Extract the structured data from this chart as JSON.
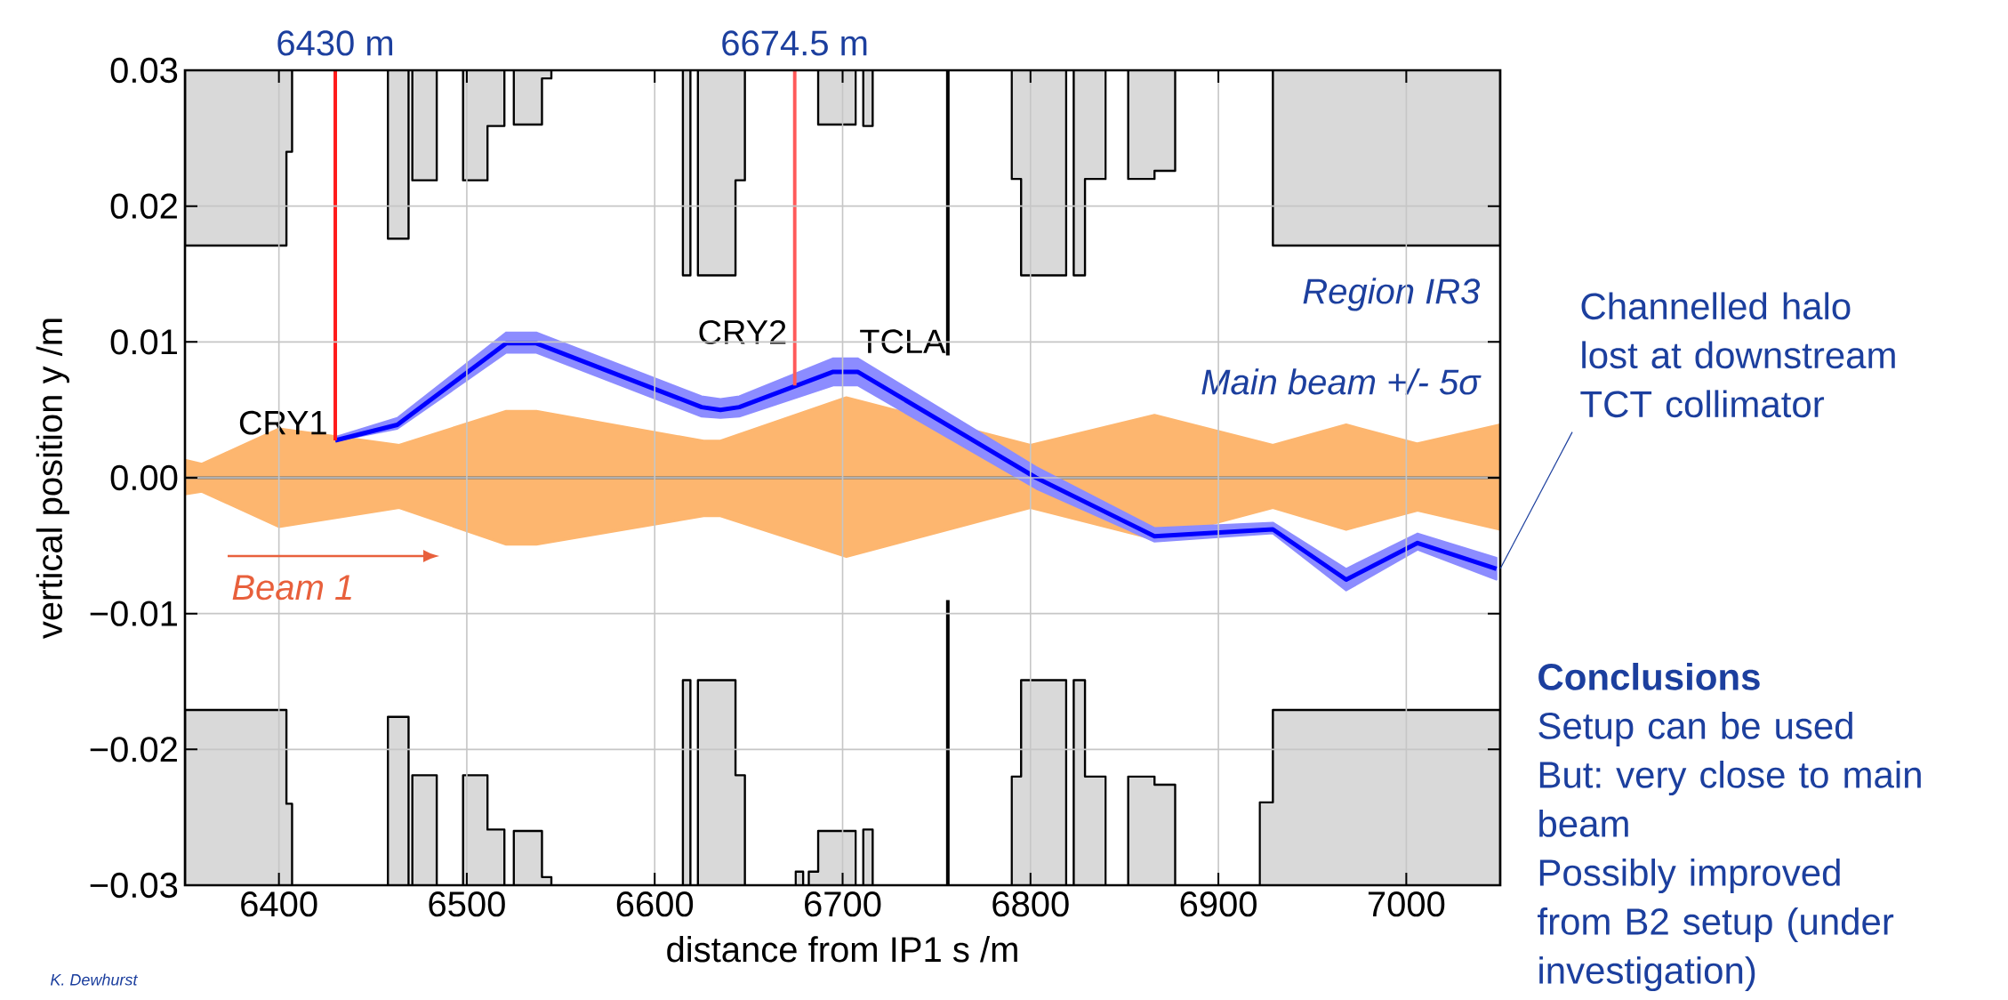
{
  "chart_data": {
    "type": "line",
    "xlabel": "distance from IP1 s /m",
    "ylabel": "vertical position y /m",
    "xlim": [
      6350,
      7050
    ],
    "ylim": [
      -0.03,
      0.03
    ],
    "xticks": [
      6400,
      6500,
      6600,
      6700,
      6800,
      6900,
      7000
    ],
    "yticks": [
      {
        "value": -0.03,
        "label": "−0.03"
      },
      {
        "value": -0.02,
        "label": "−0.02"
      },
      {
        "value": -0.01,
        "label": "−0.01"
      },
      {
        "value": 0,
        "label": "0.00"
      },
      {
        "value": 0.01,
        "label": "0.01"
      },
      {
        "value": 0.02,
        "label": "0.02"
      },
      {
        "value": 0.03,
        "label": "0.03"
      }
    ],
    "grid": true,
    "ref_lines": [
      {
        "axis": "y",
        "value": 0,
        "color": "#6e6e6e"
      }
    ],
    "series": [
      {
        "type": "area",
        "color": "#d9d9d9",
        "x": [
          6350,
          6350,
          6404,
          6404,
          6407,
          6407
        ],
        "values": [
          0.03,
          0.0171,
          0.0171,
          0.024,
          0.024,
          0.03
        ]
      },
      {
        "type": "area",
        "color": "#d9d9d9",
        "x": [
          6458,
          6458,
          6469,
          6469
        ],
        "values": [
          0.03,
          0.0176,
          0.0176,
          0.03
        ]
      },
      {
        "type": "area",
        "color": "#d9d9d9",
        "x": [
          6471,
          6471,
          6484,
          6484
        ],
        "values": [
          0.03,
          0.0219,
          0.0219,
          0.03
        ]
      },
      {
        "type": "area",
        "color": "#d9d9d9",
        "x": [
          6498,
          6498,
          6511,
          6511,
          6520,
          6520
        ],
        "values": [
          0.03,
          0.0219,
          0.0219,
          0.0259,
          0.0259,
          0.03
        ]
      },
      {
        "type": "area",
        "color": "#d9d9d9",
        "x": [
          6525,
          6525,
          6540,
          6540,
          6545,
          6545
        ],
        "values": [
          0.03,
          0.026,
          0.026,
          0.0294,
          0.0294,
          0.03
        ]
      },
      {
        "type": "area",
        "color": "#d9d9d9",
        "x": [
          6615,
          6615,
          6619,
          6619
        ],
        "values": [
          0.03,
          0.0149,
          0.0149,
          0.03
        ]
      },
      {
        "type": "area",
        "color": "#d9d9d9",
        "x": [
          6623,
          6623,
          6643,
          6643,
          6648,
          6648
        ],
        "values": [
          0.03,
          0.0149,
          0.0149,
          0.0219,
          0.0219,
          0.03
        ]
      },
      {
        "type": "area",
        "color": "#d9d9d9",
        "x": [
          6687,
          6687,
          6707,
          6707
        ],
        "values": [
          0.03,
          0.026,
          0.026,
          0.03
        ]
      },
      {
        "type": "area",
        "color": "#d9d9d9",
        "x": [
          6711,
          6711,
          6716,
          6716
        ],
        "values": [
          0.03,
          0.0259,
          0.0259,
          0.03
        ]
      },
      {
        "type": "area",
        "color": "#d9d9d9",
        "x": [
          6790,
          6790,
          6795,
          6795,
          6819,
          6819
        ],
        "values": [
          0.03,
          0.022,
          0.022,
          0.0149,
          0.0149,
          0.03
        ]
      },
      {
        "type": "area",
        "color": "#d9d9d9",
        "x": [
          6823,
          6823,
          6829,
          6829,
          6840,
          6840
        ],
        "values": [
          0.03,
          0.0149,
          0.0149,
          0.022,
          0.022,
          0.03
        ]
      },
      {
        "type": "area",
        "color": "#d9d9d9",
        "x": [
          6852,
          6852,
          6866,
          6866,
          6877,
          6877
        ],
        "values": [
          0.03,
          0.022,
          0.022,
          0.0226,
          0.0226,
          0.03
        ]
      },
      {
        "type": "area",
        "color": "#d9d9d9",
        "x": [
          6929,
          6929,
          7050,
          7050
        ],
        "values": [
          0.03,
          0.0171,
          0.0171,
          0.03
        ]
      },
      {
        "type": "area",
        "color": "#d9d9d9",
        "x": [
          6350,
          6350,
          6404,
          6404,
          6407,
          6407
        ],
        "values": [
          -0.03,
          -0.0171,
          -0.0171,
          -0.024,
          -0.024,
          -0.03
        ]
      },
      {
        "type": "area",
        "color": "#d9d9d9",
        "x": [
          6458,
          6458,
          6469,
          6469
        ],
        "values": [
          -0.03,
          -0.0176,
          -0.0176,
          -0.03
        ]
      },
      {
        "type": "area",
        "color": "#d9d9d9",
        "x": [
          6471,
          6471,
          6484,
          6484
        ],
        "values": [
          -0.03,
          -0.0219,
          -0.0219,
          -0.03
        ]
      },
      {
        "type": "area",
        "color": "#d9d9d9",
        "x": [
          6498,
          6498,
          6511,
          6511,
          6520,
          6520
        ],
        "values": [
          -0.03,
          -0.0219,
          -0.0219,
          -0.0259,
          -0.0259,
          -0.03
        ]
      },
      {
        "type": "area",
        "color": "#d9d9d9",
        "x": [
          6525,
          6525,
          6540,
          6540,
          6545,
          6545
        ],
        "values": [
          -0.03,
          -0.026,
          -0.026,
          -0.0294,
          -0.0294,
          -0.03
        ]
      },
      {
        "type": "area",
        "color": "#d9d9d9",
        "x": [
          6615,
          6615,
          6619,
          6619
        ],
        "values": [
          -0.03,
          -0.0149,
          -0.0149,
          -0.03
        ]
      },
      {
        "type": "area",
        "color": "#d9d9d9",
        "x": [
          6623,
          6623,
          6643,
          6643,
          6648,
          6648
        ],
        "values": [
          -0.03,
          -0.0149,
          -0.0149,
          -0.0219,
          -0.0219,
          -0.03
        ]
      },
      {
        "type": "area",
        "color": "#d9d9d9",
        "x": [
          6675,
          6675,
          6679,
          6679
        ],
        "values": [
          -0.03,
          -0.029,
          -0.029,
          -0.03
        ]
      },
      {
        "type": "area",
        "color": "#d9d9d9",
        "x": [
          6682,
          6682,
          6687,
          6687,
          6707,
          6707
        ],
        "values": [
          -0.03,
          -0.029,
          -0.029,
          -0.026,
          -0.026,
          -0.03
        ]
      },
      {
        "type": "area",
        "color": "#d9d9d9",
        "x": [
          6711,
          6711,
          6716,
          6716
        ],
        "values": [
          -0.03,
          -0.0259,
          -0.0259,
          -0.03
        ]
      },
      {
        "type": "area",
        "color": "#d9d9d9",
        "x": [
          6790,
          6790,
          6795,
          6795,
          6819,
          6819
        ],
        "values": [
          -0.03,
          -0.022,
          -0.022,
          -0.0149,
          -0.0149,
          -0.03
        ]
      },
      {
        "type": "area",
        "color": "#d9d9d9",
        "x": [
          6823,
          6823,
          6829,
          6829,
          6840,
          6840
        ],
        "values": [
          -0.03,
          -0.0149,
          -0.0149,
          -0.022,
          -0.022,
          -0.03
        ]
      },
      {
        "type": "area",
        "color": "#d9d9d9",
        "x": [
          6852,
          6852,
          6866,
          6866,
          6877,
          6877
        ],
        "values": [
          -0.03,
          -0.022,
          -0.022,
          -0.0226,
          -0.0226,
          -0.03
        ]
      },
      {
        "type": "area",
        "color": "#d9d9d9",
        "x": [
          6922,
          6922,
          6929,
          6929,
          7050,
          7050
        ],
        "values": [
          -0.03,
          -0.0239,
          -0.0239,
          -0.0171,
          -0.0171,
          -0.03
        ]
      },
      {
        "type": "area",
        "color": "#fdb66f",
        "x": [
          6350,
          6359,
          6400,
          6464,
          6521,
          6537,
          6626,
          6635,
          6702,
          6800,
          6866,
          6929,
          6968,
          7006,
          7050
        ],
        "values": [
          0.0013,
          0.001,
          0.0036,
          0.0024,
          0.0049,
          0.0049,
          0.0027,
          0.0027,
          0.0059,
          0.0024,
          0.0046,
          0.0024,
          0.0039,
          0.0025,
          0.0039
        ]
      },
      {
        "type": "area",
        "color": "#fdb66f",
        "x": [
          6350,
          6359,
          6400,
          6464,
          6521,
          6537,
          6626,
          6635,
          6702,
          6800,
          6866,
          6929,
          6968,
          7006,
          7050
        ],
        "values": [
          -0.0012,
          -0.001,
          -0.0036,
          -0.0022,
          -0.0049,
          -0.0049,
          -0.0028,
          -0.0028,
          -0.0058,
          -0.0022,
          -0.0045,
          -0.0022,
          -0.0038,
          -0.0024,
          -0.0038
        ]
      },
      {
        "color": "#0000ff",
        "x": [
          6430,
          6463,
          6521,
          6537,
          6625,
          6635,
          6645,
          6695,
          6708,
          6803,
          6866,
          6929,
          6968,
          7006,
          7048
        ],
        "values": [
          0.00275,
          0.0039,
          0.0099,
          0.0099,
          0.0052,
          0.005,
          0.0052,
          0.0078,
          0.0078,
          0,
          -0.0043,
          -0.0038,
          -0.0075,
          -0.0048,
          -0.0067
        ],
        "upper": [
          0.003,
          0.0044,
          0.0107,
          0.0107,
          0.006,
          0.0058,
          0.006,
          0.0088,
          0.0088,
          0.0008,
          -0.0037,
          -0.0033,
          -0.0067,
          -0.0041,
          -0.0059
        ],
        "lower": [
          0.0027,
          0.0036,
          0.0092,
          0.0092,
          0.0045,
          0.0044,
          0.0045,
          0.0068,
          0.0068,
          -0.0008,
          -0.0047,
          -0.0041,
          -0.0083,
          -0.0053,
          -0.0075
        ]
      },
      {
        "color": "#ff1a1a",
        "x": [
          6430,
          6430
        ],
        "values": [
          0.03,
          0.00275
        ]
      },
      {
        "color": "#ff5a5a",
        "x": [
          6674.5,
          6674.5
        ],
        "values": [
          0.03,
          0.0068
        ]
      },
      {
        "name": "TCLA",
        "color": "#000000",
        "x": [
          6756,
          6756
        ],
        "values": [
          0.03,
          0.009
        ]
      },
      {
        "color": "#000000",
        "x": [
          6756,
          6756
        ],
        "values": [
          -0.009,
          -0.03
        ]
      }
    ],
    "annotations": [
      {
        "text": "6430 m",
        "x": 6430,
        "y": 0.03
      },
      {
        "text": "6674.5 m",
        "x": 6674.5,
        "y": 0.03
      },
      "Region IR3",
      {
        "text": "Channelled halo lost at downstream TCT collimator",
        "x": 7050,
        "y": -0.0067
      },
      "Beam 1",
      "Conclusions",
      "Setup can be used",
      "But: very close to main beam",
      "Possibly improved from B2 setup (under investigation)",
      "K. Dewhurst",
      {
        "text": "CRY1",
        "x": 6430,
        "y": 0.00275
      },
      {
        "text": "CRY2",
        "x": 6674.5,
        "y": 0.0068
      },
      "Main beam +/- 5σ"
    ]
  }
}
